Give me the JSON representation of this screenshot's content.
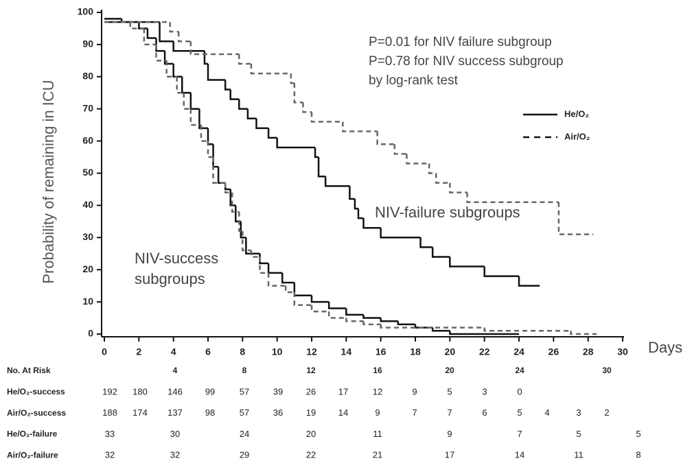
{
  "chart_data": {
    "type": "step",
    "y_label": "Probability of remaining in ICU",
    "x_label": "Days",
    "annotations": [
      "P=0.01 for NIV failure subgroup",
      "P=0.78 for NIV success subgroup",
      "by log-rank test",
      "NIV-failure subgroups",
      "NIV-success",
      "subgroups"
    ],
    "xlim": [
      0,
      30
    ],
    "xticks": [
      0,
      2,
      4,
      6,
      8,
      10,
      12,
      14,
      16,
      18,
      20,
      22,
      24,
      26,
      28,
      30
    ],
    "ylim": [
      0,
      100
    ],
    "yticks": [
      0,
      10,
      20,
      30,
      40,
      50,
      60,
      70,
      80,
      90,
      100
    ],
    "series": [
      {
        "name": "He/O₂",
        "color": "#111111",
        "dashed": false,
        "curves": [
          {
            "x": [
              0,
              3.2,
              4,
              5.8,
              6,
              7,
              7.3,
              7.8,
              8.3,
              8.8,
              9.5,
              10,
              12.2,
              12.4,
              12.8,
              14.2,
              14.5,
              14.7,
              15,
              16,
              18.3,
              19,
              20,
              22,
              24,
              25.2
            ],
            "values": [
              97,
              91,
              88,
              84,
              79,
              76,
              73,
              70,
              67,
              64,
              61,
              58,
              55,
              49,
              46,
              42,
              39,
              36,
              33,
              30,
              27,
              24,
              21,
              18,
              15,
              15
            ]
          },
          {
            "x": [
              0,
              1,
              2,
              2.5,
              3,
              3.5,
              4,
              4.5,
              5,
              5.5,
              6,
              6.3,
              6.6,
              7,
              7.3,
              7.6,
              7.9,
              8.2,
              9,
              9.5,
              10.3,
              11,
              12,
              13,
              14,
              15,
              16,
              17,
              18,
              19,
              20,
              24
            ],
            "values": [
              98,
              97,
              95,
              92,
              88,
              84,
              80,
              75,
              70,
              64,
              59,
              52,
              47,
              45,
              40,
              35,
              30,
              25,
              22,
              19,
              16,
              12,
              10,
              8,
              6,
              5,
              4,
              3,
              2,
              1,
              0,
              0
            ]
          }
        ]
      },
      {
        "name": "Air/O₂",
        "color": "#666666",
        "dashed": true,
        "curves": [
          {
            "x": [
              0,
              3.8,
              4.3,
              5,
              7.8,
              8.5,
              10.8,
              11,
              11.5,
              12,
              13.8,
              15.8,
              16.8,
              17.5,
              18.8,
              19.2,
              20,
              21,
              26.3,
              28.3
            ],
            "values": [
              97,
              94,
              91,
              87,
              84,
              81,
              78,
              72,
              69,
              66,
              63,
              59,
              56,
              53,
              50,
              47,
              44,
              41,
              31,
              31
            ]
          },
          {
            "x": [
              0,
              1.5,
              2.3,
              3,
              3.6,
              4.2,
              4.6,
              5,
              5.6,
              6,
              6.3,
              7,
              7.4,
              7.8,
              8,
              8.5,
              9,
              9.5,
              10.5,
              11,
              12,
              13,
              14,
              15,
              16,
              22,
              27,
              28.5
            ],
            "values": [
              97,
              95,
              90,
              85,
              80,
              75,
              70,
              65,
              60,
              55,
              47,
              44,
              38,
              32,
              26,
              24,
              19,
              15,
              13,
              9,
              7,
              5,
              4,
              3,
              2,
              1,
              0,
              0
            ]
          }
        ]
      }
    ]
  },
  "risk_table": {
    "title": "No. At Risk",
    "columns": [
      null,
      null,
      4,
      null,
      8,
      null,
      12,
      null,
      16,
      null,
      20,
      null,
      24,
      null,
      null,
      30,
      null
    ],
    "rows": [
      {
        "label": "He/O₂-success",
        "values": [
          192,
          180,
          146,
          99,
          57,
          39,
          26,
          17,
          12,
          9,
          5,
          3,
          0,
          null,
          null,
          null,
          null
        ]
      },
      {
        "label": "Air/O₂-success",
        "values": [
          188,
          174,
          137,
          98,
          57,
          36,
          19,
          14,
          9,
          7,
          7,
          6,
          5,
          4,
          3,
          2,
          null
        ]
      },
      {
        "label": "He/O₂-failure",
        "values": [
          33,
          null,
          30,
          null,
          24,
          null,
          20,
          null,
          11,
          null,
          9,
          null,
          7,
          null,
          5,
          null,
          5
        ]
      },
      {
        "label": "Air/O₂-failure",
        "values": [
          32,
          null,
          32,
          null,
          29,
          null,
          22,
          null,
          21,
          null,
          17,
          null,
          14,
          null,
          11,
          null,
          8
        ]
      }
    ]
  }
}
